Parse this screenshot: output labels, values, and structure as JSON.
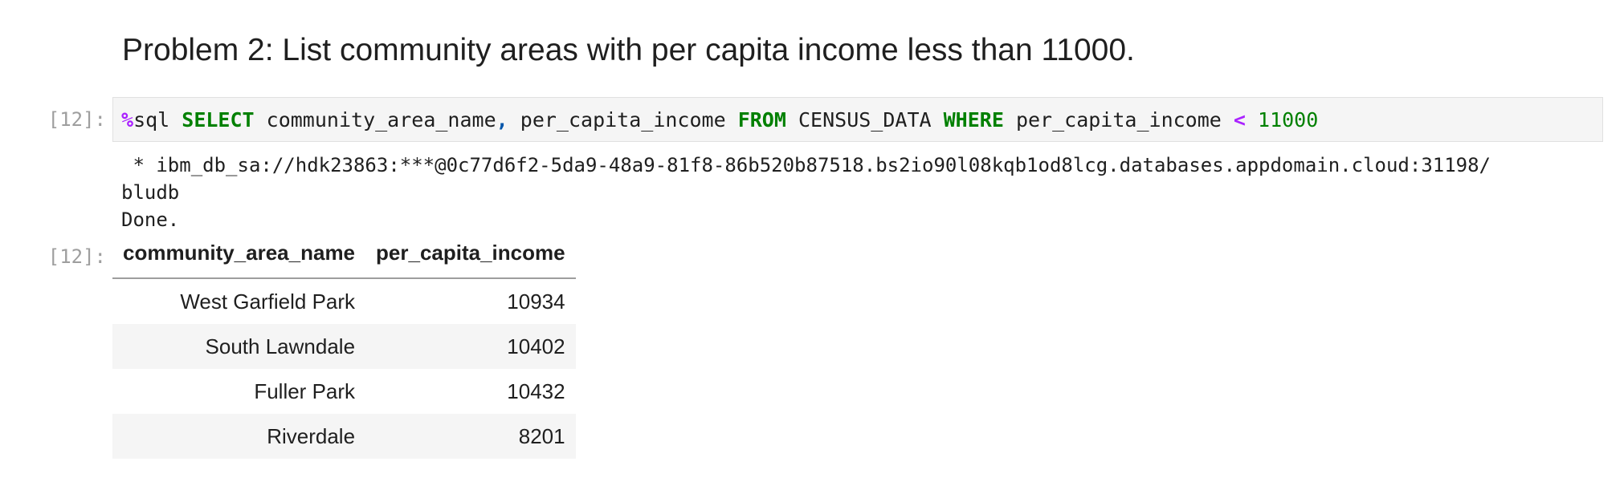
{
  "markdown": {
    "heading": "Problem 2: List community areas with per capita income less than 11000."
  },
  "code_cell": {
    "input_prompt": "[12]:",
    "output_prompt": "[12]:",
    "tokens": {
      "magic_symbol": "%",
      "magic_name": "sql",
      "kw_select": "SELECT",
      "col1": "community_area_name",
      "comma": ",",
      "col2": "per_capita_income",
      "kw_from": "FROM",
      "table": "CENSUS_DATA",
      "kw_where": "WHERE",
      "cond_col": "per_capita_income",
      "operator": "<",
      "value": "11000"
    }
  },
  "stdout": {
    "line1": " * ibm_db_sa://hdk23863:***@0c77d6f2-5da9-48a9-81f8-86b520b87518.bs2io90l08kqb1od8lcg.databases.appdomain.cloud:31198/",
    "line2": "bludb",
    "line3": "Done."
  },
  "result_table": {
    "columns": [
      "community_area_name",
      "per_capita_income"
    ],
    "rows": [
      [
        "West Garfield Park",
        "10934"
      ],
      [
        "South Lawndale",
        "10402"
      ],
      [
        "Fuller Park",
        "10432"
      ],
      [
        "Riverdale",
        "8201"
      ]
    ]
  },
  "colors": {
    "keyword": "#008000",
    "magic": "#aa22ff",
    "number": "#008000",
    "prompt": "#9e9e9e",
    "cell_background": "#f5f5f5"
  }
}
